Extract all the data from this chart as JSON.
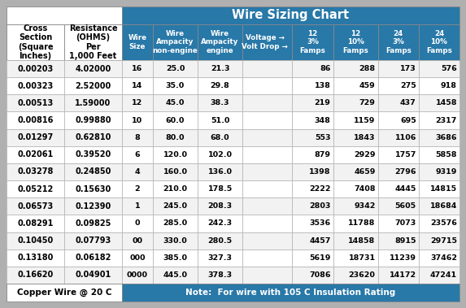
{
  "title": "Wire Sizing Chart",
  "title_bg": "#2878a8",
  "title_color": "#ffffff",
  "header_bg": "#2878a8",
  "header_color": "#ffffff",
  "footer_bg": "#2878a8",
  "footer_color": "#ffffff",
  "footer_left": "Copper Wire @ 20 C",
  "footer_right": "Note:  For wire with 105 C Insulation Rating",
  "outer_bg": "#b0b0b0",
  "table_border": "#888888",
  "left_col_header1": "Cross\nSection\n(Square\nInches)",
  "left_col_header2": "Resistance\n(OHMS)\nPer\n1,000 Feet",
  "col_headers_main": [
    "Wire\nSize",
    "Wire\nAmpacity\nnon-engine",
    "Wire\nAmpacity\nengine",
    "Voltage →\nVolt Drop →",
    "12\n3%\nFamps",
    "12\n10%\nFamps",
    "24\n3%\nFamps",
    "24\n10%\nFamps"
  ],
  "rows": [
    [
      "0.00203",
      "4.02000",
      "16",
      "25.0",
      "21.3",
      "",
      "86",
      "288",
      "173",
      "576"
    ],
    [
      "0.00323",
      "2.52000",
      "14",
      "35.0",
      "29.8",
      "",
      "138",
      "459",
      "275",
      "918"
    ],
    [
      "0.00513",
      "1.59000",
      "12",
      "45.0",
      "38.3",
      "",
      "219",
      "729",
      "437",
      "1458"
    ],
    [
      "0.00816",
      "0.99880",
      "10",
      "60.0",
      "51.0",
      "",
      "348",
      "1159",
      "695",
      "2317"
    ],
    [
      "0.01297",
      "0.62810",
      "8",
      "80.0",
      "68.0",
      "",
      "553",
      "1843",
      "1106",
      "3686"
    ],
    [
      "0.02061",
      "0.39520",
      "6",
      "120.0",
      "102.0",
      "",
      "879",
      "2929",
      "1757",
      "5858"
    ],
    [
      "0.03278",
      "0.24850",
      "4",
      "160.0",
      "136.0",
      "",
      "1398",
      "4659",
      "2796",
      "9319"
    ],
    [
      "0.05212",
      "0.15630",
      "2",
      "210.0",
      "178.5",
      "",
      "2222",
      "7408",
      "4445",
      "14815"
    ],
    [
      "0.06573",
      "0.12390",
      "1",
      "245.0",
      "208.3",
      "",
      "2803",
      "9342",
      "5605",
      "18684"
    ],
    [
      "0.08291",
      "0.09825",
      "0",
      "285.0",
      "242.3",
      "",
      "3536",
      "11788",
      "7073",
      "23576"
    ],
    [
      "0.10450",
      "0.07793",
      "00",
      "330.0",
      "280.5",
      "",
      "4457",
      "14858",
      "8915",
      "29715"
    ],
    [
      "0.13180",
      "0.06182",
      "000",
      "385.0",
      "327.3",
      "",
      "5619",
      "18731",
      "11239",
      "37462"
    ],
    [
      "0.16620",
      "0.04901",
      "0000",
      "445.0",
      "378.3",
      "",
      "7086",
      "23620",
      "14172",
      "47241"
    ]
  ],
  "figsize": [
    5.73,
    3.79
  ],
  "dpi": 100
}
